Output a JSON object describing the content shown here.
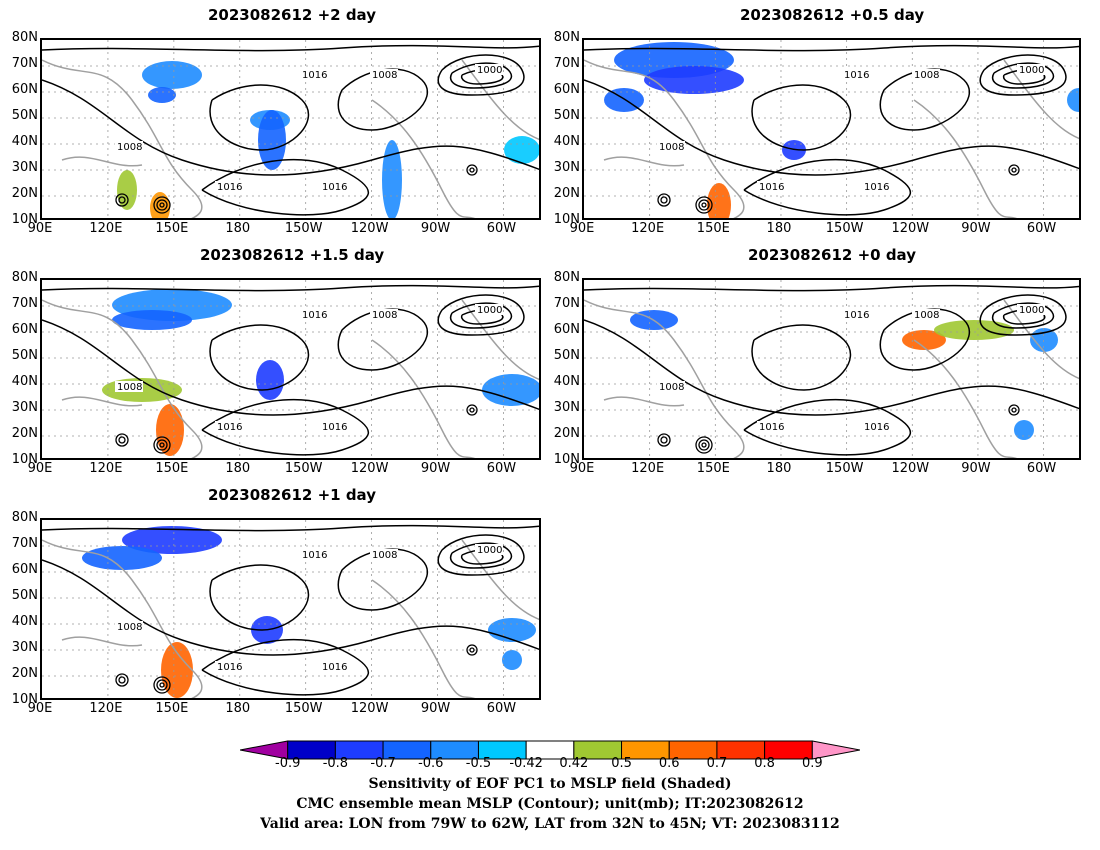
{
  "panels": [
    {
      "id": "p1",
      "title": "2023082612 +2 day"
    },
    {
      "id": "p2",
      "title": "2023082612 +0.5 day"
    },
    {
      "id": "p3",
      "title": "2023082612 +1.5 day"
    },
    {
      "id": "p4",
      "title": "2023082612 +0 day"
    },
    {
      "id": "p5",
      "title": "2023082612 +1 day"
    }
  ],
  "lat_ticks": [
    "80N",
    "70N",
    "60N",
    "50N",
    "40N",
    "30N",
    "20N",
    "10N"
  ],
  "lon_ticks": [
    "90E",
    "120E",
    "150E",
    "180",
    "150W",
    "120W",
    "90W",
    "60W"
  ],
  "contour_labels": [
    "1000",
    "1008",
    "1016"
  ],
  "colorbar": {
    "levels": [
      "-0.9",
      "-0.8",
      "-0.7",
      "-0.6",
      "-0.5",
      "-0.42",
      "0.42",
      "0.5",
      "0.6",
      "0.7",
      "0.8",
      "0.9"
    ],
    "colors": [
      "#a000a0",
      "#0000c8",
      "#1e3cff",
      "#1464ff",
      "#1e8cff",
      "#00c8ff",
      "#ffffff",
      "#a0c832",
      "#ff9600",
      "#ff6400",
      "#ff3200",
      "#ff0000",
      "#ff96c8"
    ]
  },
  "caption": {
    "line1": "Sensitivity of EOF PC1 to MSLP field (Shaded)",
    "line2": "CMC ensemble mean MSLP (Contour); unit(mb); IT:2023082612",
    "line3": "Valid area: LON from 79W to 62W, LAT from 32N to 45N; VT: 2023083112"
  }
}
